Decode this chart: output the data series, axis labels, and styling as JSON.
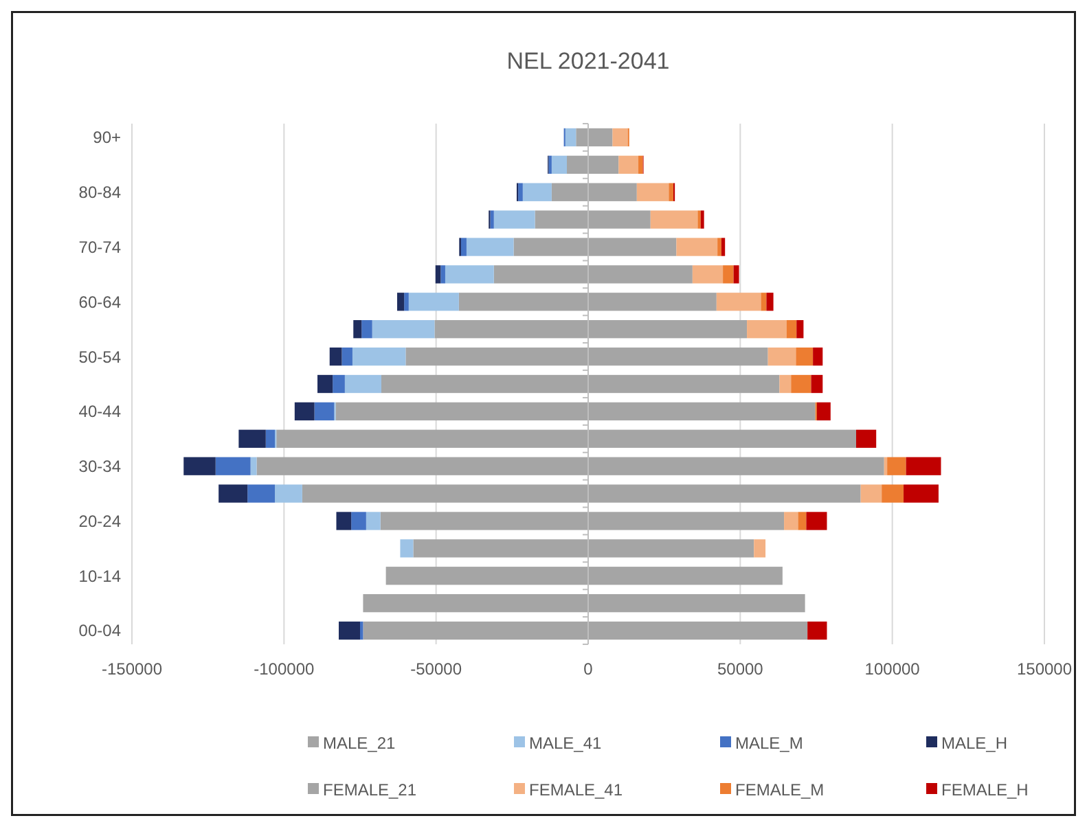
{
  "chart_data": {
    "type": "bar",
    "title": "NEL 2021-2041",
    "orientation": "horizontal",
    "stacked": true,
    "categories": [
      "90+",
      null,
      "80-84",
      null,
      "70-74",
      null,
      "60-64",
      null,
      "50-54",
      null,
      "40-44",
      null,
      "30-34",
      null,
      "20-24",
      null,
      "10-14",
      null,
      "00-04"
    ],
    "series": [
      {
        "name": "MALE_21",
        "color": "#a5a5a5",
        "values": [
          -4000,
          -7000,
          -12000,
          -17500,
          -24500,
          -31000,
          -42500,
          -50500,
          -60000,
          -68000,
          -83000,
          -102500,
          -109000,
          -94000,
          -68300,
          -57500,
          -66500,
          -74000,
          -74000
        ]
      },
      {
        "name": "MALE_41",
        "color": "#9dc3e6",
        "values": [
          -3500,
          -5000,
          -9500,
          -13500,
          -15500,
          -16000,
          -16500,
          -20500,
          -17500,
          -12000,
          -500,
          -500,
          -2000,
          -9000,
          -4700,
          -4300,
          0,
          0,
          0
        ]
      },
      {
        "name": "MALE_M",
        "color": "#4472c4",
        "values": [
          -500,
          -1000,
          -1500,
          -1200,
          -1800,
          -1500,
          -1500,
          -3500,
          -3500,
          -4000,
          -6500,
          -3000,
          -11500,
          -9000,
          -4900,
          0,
          0,
          0,
          -1000
        ]
      },
      {
        "name": "MALE_H",
        "color": "#1f2d5e",
        "values": [
          0,
          -300,
          -500,
          -500,
          -600,
          -1700,
          -2300,
          -2700,
          -4000,
          -5000,
          -6500,
          -8900,
          -10500,
          -9500,
          -4900,
          0,
          0,
          0,
          -7000
        ]
      },
      {
        "name": "FEMALE_21",
        "color": "#a5a5a5",
        "values": [
          8000,
          10000,
          16000,
          20500,
          29000,
          34300,
          42200,
          52200,
          59100,
          62900,
          74700,
          88100,
          97300,
          89600,
          64400,
          54500,
          63900,
          71300,
          72100
        ]
      },
      {
        "name": "FEMALE_41",
        "color": "#f4b183",
        "values": [
          5000,
          6500,
          10500,
          15500,
          13500,
          10000,
          14600,
          13000,
          9200,
          3800,
          0,
          0,
          1000,
          6900,
          4600,
          3800,
          0,
          0,
          0
        ]
      },
      {
        "name": "FEMALE_M",
        "color": "#ed7d31",
        "values": [
          500,
          1500,
          1500,
          1000,
          1300,
          3500,
          1800,
          3300,
          5600,
          6600,
          500,
          0,
          6200,
          7200,
          2700,
          0,
          0,
          0,
          0
        ]
      },
      {
        "name": "FEMALE_H",
        "color": "#c00000",
        "values": [
          0,
          200,
          500,
          1100,
          1200,
          1800,
          2300,
          2300,
          3200,
          3800,
          4500,
          6600,
          11500,
          11500,
          6800,
          0,
          0,
          0,
          6400
        ]
      }
    ],
    "xlim": [
      -150000,
      150000
    ],
    "xticks": [
      -150000,
      -100000,
      -50000,
      0,
      50000,
      100000,
      150000
    ],
    "grid": "x",
    "legend": "bottom"
  }
}
